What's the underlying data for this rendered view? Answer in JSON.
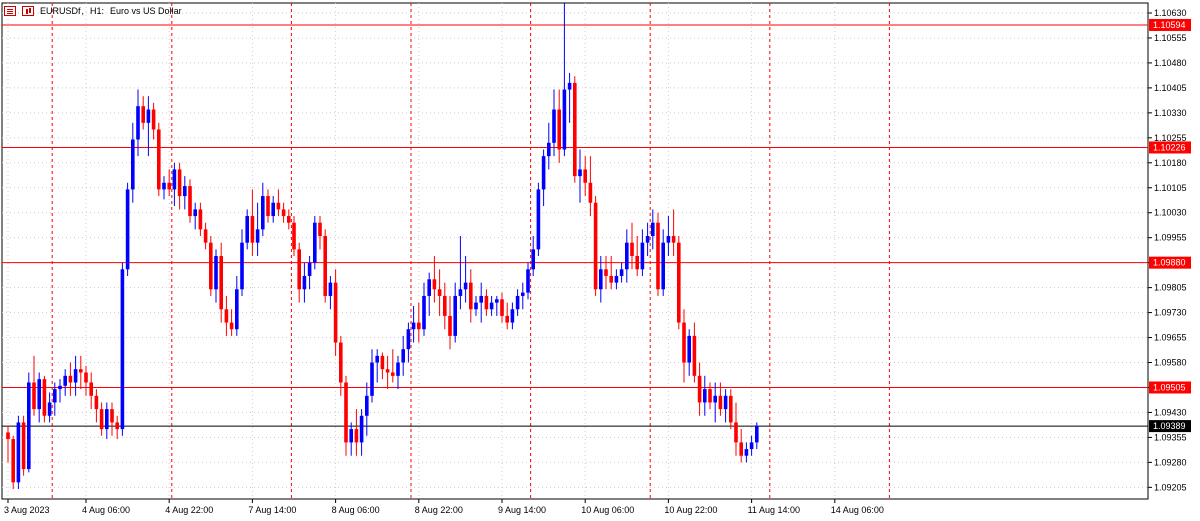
{
  "header": {
    "symbol": "EURUSDf",
    "timeframe": "H1:",
    "description": "Euro vs US Dollar",
    "icons": [
      "list-icon",
      "chart-icon"
    ]
  },
  "colors": {
    "bull": "#0000ff",
    "bear": "#ff0000",
    "grid": "#cccccc",
    "period_sep": "#ff0000",
    "hline": "#ff0000",
    "current_price_line": "#000000",
    "background": "#ffffff"
  },
  "chart_data": {
    "type": "candlestick",
    "symbol": "EURUSDf",
    "timeframe": "H1",
    "ylim": [
      1.0917,
      1.1066
    ],
    "y_ticks": [
      "1.10630",
      "1.10555",
      "1.10480",
      "1.10405",
      "1.10330",
      "1.10255",
      "1.10180",
      "1.10105",
      "1.10030",
      "1.09955",
      "1.09880",
      "1.09805",
      "1.09730",
      "1.09655",
      "1.09580",
      "1.09505",
      "1.09430",
      "1.09355",
      "1.09280",
      "1.09205"
    ],
    "x_labels": [
      "3 Aug 2023",
      "4 Aug 06:00",
      "4 Aug 22:00",
      "7 Aug 14:00",
      "8 Aug 06:00",
      "8 Aug 22:00",
      "9 Aug 14:00",
      "10 Aug 06:00",
      "10 Aug 22:00",
      "11 Aug 14:00",
      "14 Aug 06:00"
    ],
    "x_label_bar_index": [
      0,
      15,
      31,
      47,
      63,
      79,
      95,
      111,
      127,
      143,
      159
    ],
    "period_separator_bar_index": [
      9,
      32,
      55,
      78,
      101,
      124,
      147,
      170
    ],
    "horizontal_lines": [
      {
        "price": 1.10594,
        "label": "1.10594"
      },
      {
        "price": 1.10226,
        "label": "1.10226"
      },
      {
        "price": 1.0988,
        "label": "1.09880"
      },
      {
        "price": 1.09505,
        "label": "1.09505"
      }
    ],
    "current_price": {
      "price": 1.09389,
      "label": "1.09389"
    },
    "candles": [
      [
        1.0937,
        1.0939,
        1.0928,
        1.0935
      ],
      [
        1.0935,
        1.0936,
        1.092,
        1.0922
      ],
      [
        1.0922,
        1.0942,
        1.092,
        1.094
      ],
      [
        1.094,
        1.0942,
        1.0924,
        1.0926
      ],
      [
        1.0926,
        1.0955,
        1.0925,
        1.0952
      ],
      [
        1.0952,
        1.096,
        1.0942,
        1.0944
      ],
      [
        1.0944,
        1.0955,
        1.094,
        1.0953
      ],
      [
        1.0953,
        1.0954,
        1.094,
        1.0942
      ],
      [
        1.0942,
        1.0949,
        1.094,
        1.0946
      ],
      [
        1.0946,
        1.0952,
        1.0942,
        1.095
      ],
      [
        1.095,
        1.0953,
        1.0946,
        1.0951
      ],
      [
        1.0951,
        1.0956,
        1.0948,
        1.0954
      ],
      [
        1.0954,
        1.0958,
        1.0948,
        1.0952
      ],
      [
        1.0952,
        1.096,
        1.0948,
        1.0956
      ],
      [
        1.0956,
        1.096,
        1.095,
        1.0955
      ],
      [
        1.0955,
        1.0957,
        1.0948,
        1.0952
      ],
      [
        1.0952,
        1.0955,
        1.0944,
        1.0948
      ],
      [
        1.0948,
        1.095,
        1.094,
        1.0944
      ],
      [
        1.0944,
        1.0946,
        1.0936,
        1.0938
      ],
      [
        1.0938,
        1.0946,
        1.0935,
        1.0944
      ],
      [
        1.0944,
        1.0946,
        1.0936,
        1.094
      ],
      [
        1.094,
        1.0942,
        1.0935,
        1.0938
      ],
      [
        1.0938,
        1.0988,
        1.0936,
        1.0986
      ],
      [
        1.0986,
        1.1012,
        1.0984,
        1.101
      ],
      [
        1.101,
        1.103,
        1.1006,
        1.1025
      ],
      [
        1.1025,
        1.104,
        1.102,
        1.1035
      ],
      [
        1.1035,
        1.1038,
        1.1028,
        1.103
      ],
      [
        1.103,
        1.1038,
        1.102,
        1.1034
      ],
      [
        1.1034,
        1.1036,
        1.1025,
        1.1028
      ],
      [
        1.1028,
        1.103,
        1.1008,
        1.101
      ],
      [
        1.101,
        1.1014,
        1.1007,
        1.1012
      ],
      [
        1.1012,
        1.1016,
        1.1008,
        1.101
      ],
      [
        1.101,
        1.1018,
        1.1005,
        1.1016
      ],
      [
        1.1016,
        1.1018,
        1.1004,
        1.1008
      ],
      [
        1.1008,
        1.1014,
        1.1004,
        1.1011
      ],
      [
        1.1011,
        1.1013,
        1.1,
        1.1002
      ],
      [
        1.1002,
        1.1006,
        1.0998,
        1.1004
      ],
      [
        1.1004,
        1.1006,
        1.0996,
        1.0998
      ],
      [
        1.0998,
        1.1,
        1.0992,
        1.0994
      ],
      [
        1.0994,
        1.0996,
        1.0978,
        1.098
      ],
      [
        1.098,
        1.0992,
        1.0976,
        1.099
      ],
      [
        1.099,
        1.0994,
        1.097,
        1.0974
      ],
      [
        1.0974,
        1.0978,
        1.0966,
        1.097
      ],
      [
        1.097,
        1.0974,
        1.0966,
        1.0968
      ],
      [
        1.0968,
        1.0984,
        1.0966,
        1.098
      ],
      [
        1.098,
        1.0998,
        1.0978,
        1.0994
      ],
      [
        1.0994,
        1.1004,
        1.0992,
        1.1002
      ],
      [
        1.1002,
        1.101,
        1.099,
        1.0994
      ],
      [
        1.0994,
        1.1006,
        1.099,
        1.0998
      ],
      [
        1.0998,
        1.1012,
        1.0996,
        1.1008
      ],
      [
        1.1008,
        1.101,
        1.1,
        1.1002
      ],
      [
        1.1002,
        1.1008,
        1.1,
        1.1006
      ],
      [
        1.1006,
        1.101,
        1.1002,
        1.1004
      ],
      [
        1.1004,
        1.1006,
        1.1,
        1.1002
      ],
      [
        1.1002,
        1.1004,
        1.0998,
        1.1
      ],
      [
        1.1,
        1.1002,
        1.099,
        1.0992
      ],
      [
        1.0992,
        1.0994,
        1.0976,
        1.098
      ],
      [
        1.098,
        1.0988,
        1.0976,
        1.0984
      ],
      [
        1.0984,
        1.099,
        1.098,
        1.0988
      ],
      [
        1.0988,
        1.1002,
        1.0986,
        1.1
      ],
      [
        1.1,
        1.1002,
        1.0992,
        1.0996
      ],
      [
        1.0996,
        1.0998,
        1.0976,
        1.0978
      ],
      [
        1.0978,
        1.0984,
        1.0974,
        1.0982
      ],
      [
        1.0982,
        1.0986,
        1.096,
        1.0964
      ],
      [
        1.0964,
        1.0966,
        1.0948,
        1.0952
      ],
      [
        1.0952,
        1.0954,
        1.093,
        1.0934
      ],
      [
        1.0934,
        1.094,
        1.093,
        1.0938
      ],
      [
        1.0938,
        1.0944,
        1.093,
        1.0934
      ],
      [
        1.0934,
        1.0944,
        1.093,
        1.0942
      ],
      [
        1.0942,
        1.0952,
        1.0936,
        1.0948
      ],
      [
        1.0948,
        1.0962,
        1.0946,
        1.0958
      ],
      [
        1.0958,
        1.0962,
        1.0952,
        1.096
      ],
      [
        1.096,
        1.0961,
        1.0953,
        1.0956
      ],
      [
        1.0956,
        1.096,
        1.095,
        1.0955
      ],
      [
        1.0955,
        1.0962,
        1.0952,
        1.0954
      ],
      [
        1.0954,
        1.096,
        1.095,
        1.0958
      ],
      [
        1.0958,
        1.0966,
        1.0954,
        1.0962
      ],
      [
        1.0962,
        1.097,
        1.0958,
        1.0968
      ],
      [
        1.0968,
        1.0975,
        1.0964,
        1.097
      ],
      [
        1.097,
        1.0976,
        1.0964,
        1.0968
      ],
      [
        1.0968,
        1.0982,
        1.0966,
        1.0978
      ],
      [
        1.0978,
        1.0985,
        1.0972,
        1.0983
      ],
      [
        1.0983,
        1.099,
        1.0976,
        1.098
      ],
      [
        1.098,
        1.0986,
        1.0972,
        1.0978
      ],
      [
        1.0978,
        1.0982,
        1.0968,
        1.0972
      ],
      [
        1.0972,
        1.0978,
        1.0962,
        1.0966
      ],
      [
        1.0966,
        1.0982,
        1.0964,
        1.0978
      ],
      [
        1.0978,
        1.0996,
        1.0974,
        1.098
      ],
      [
        1.098,
        1.099,
        1.0976,
        1.0982
      ],
      [
        1.0982,
        1.0986,
        1.097,
        1.0974
      ],
      [
        1.0974,
        1.0978,
        1.0972,
        1.0976
      ],
      [
        1.0976,
        1.0982,
        1.097,
        1.0978
      ],
      [
        1.0978,
        1.098,
        1.0972,
        1.0974
      ],
      [
        1.0974,
        1.0978,
        1.0972,
        1.0976
      ],
      [
        1.0976,
        1.0978,
        1.0972,
        1.0977
      ],
      [
        1.0977,
        1.0979,
        1.097,
        1.0972
      ],
      [
        1.0972,
        1.0976,
        1.0968,
        1.097
      ],
      [
        1.097,
        1.0976,
        1.0968,
        1.0974
      ],
      [
        1.0974,
        1.098,
        1.0972,
        1.0978
      ],
      [
        1.0978,
        1.0982,
        1.0974,
        1.0979
      ],
      [
        1.0979,
        1.0988,
        1.0977,
        1.0986
      ],
      [
        1.0986,
        1.0996,
        1.0984,
        1.0992
      ],
      [
        1.0992,
        1.1012,
        1.099,
        1.101
      ],
      [
        1.101,
        1.1022,
        1.1005,
        1.102
      ],
      [
        1.102,
        1.103,
        1.1016,
        1.1024
      ],
      [
        1.1024,
        1.104,
        1.102,
        1.1034
      ],
      [
        1.1034,
        1.104,
        1.1018,
        1.1022
      ],
      [
        1.1022,
        1.1066,
        1.102,
        1.104
      ],
      [
        1.104,
        1.1045,
        1.103,
        1.1042
      ],
      [
        1.1042,
        1.1044,
        1.1012,
        1.1014
      ],
      [
        1.1014,
        1.1022,
        1.1006,
        1.1016
      ],
      [
        1.1016,
        1.102,
        1.1008,
        1.1012
      ],
      [
        1.1012,
        1.102,
        1.1002,
        1.1006
      ],
      [
        1.1006,
        1.1008,
        1.0978,
        1.098
      ],
      [
        1.098,
        1.099,
        1.0976,
        1.0986
      ],
      [
        1.0986,
        1.099,
        1.098,
        1.0984
      ],
      [
        1.0984,
        1.099,
        1.098,
        1.0982
      ],
      [
        1.0982,
        1.0986,
        1.098,
        1.0984
      ],
      [
        1.0984,
        1.0988,
        1.0982,
        1.0986
      ],
      [
        1.0986,
        1.0998,
        1.0982,
        1.0994
      ],
      [
        1.0994,
        1.1,
        1.0986,
        1.099
      ],
      [
        1.099,
        1.0996,
        1.0984,
        1.0986
      ],
      [
        1.0986,
        1.0998,
        1.0984,
        1.0994
      ],
      [
        1.0994,
        1.1,
        1.099,
        1.0996
      ],
      [
        1.0996,
        1.1004,
        1.0992,
        1.1
      ],
      [
        1.1,
        1.1003,
        1.0978,
        1.098
      ],
      [
        1.098,
        1.0998,
        1.0978,
        1.0994
      ],
      [
        1.0994,
        1.1002,
        1.099,
        1.0996
      ],
      [
        1.0996,
        1.1004,
        1.099,
        1.0994
      ],
      [
        1.0994,
        1.0996,
        1.0968,
        1.097
      ],
      [
        1.097,
        1.0974,
        1.0952,
        1.0958
      ],
      [
        1.0958,
        1.0968,
        1.0954,
        1.0966
      ],
      [
        1.0966,
        1.097,
        1.0952,
        1.0954
      ],
      [
        1.0954,
        1.0958,
        1.0942,
        1.0946
      ],
      [
        1.0946,
        1.0954,
        1.0942,
        1.095
      ],
      [
        1.095,
        1.0952,
        1.0944,
        1.0946
      ],
      [
        1.0946,
        1.0952,
        1.094,
        1.0948
      ],
      [
        1.0948,
        1.0952,
        1.0942,
        1.0944
      ],
      [
        1.0944,
        1.095,
        1.094,
        1.0948
      ],
      [
        1.0948,
        1.095,
        1.0938,
        1.094
      ],
      [
        1.094,
        1.0946,
        1.093,
        1.0934
      ],
      [
        1.0934,
        1.0938,
        1.0928,
        1.093
      ],
      [
        1.093,
        1.0934,
        1.0928,
        1.0932
      ],
      [
        1.0932,
        1.0936,
        1.093,
        1.0934
      ],
      [
        1.0934,
        1.094,
        1.0932,
        1.0939
      ]
    ]
  }
}
